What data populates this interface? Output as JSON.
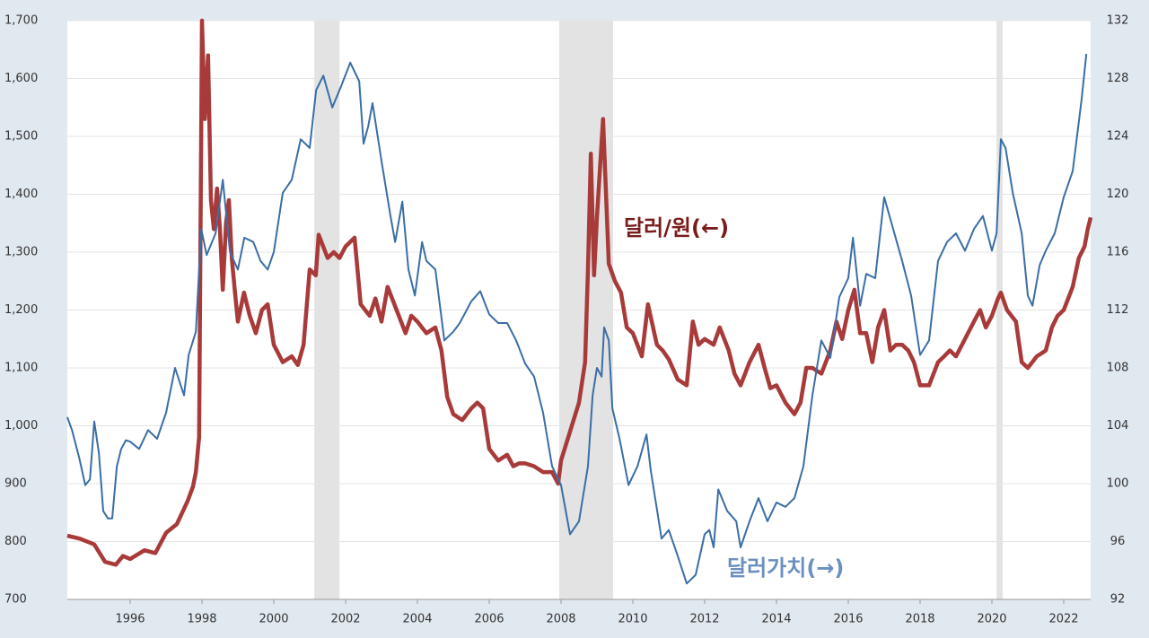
{
  "chart_data": {
    "type": "line",
    "xlim": [
      1994.25,
      2022.75
    ],
    "xticks": [
      1996,
      1998,
      2000,
      2002,
      2004,
      2006,
      2008,
      2010,
      2012,
      2014,
      2016,
      2018,
      2020,
      2022
    ],
    "ylim": [
      700,
      1700
    ],
    "yticks": [
      700,
      800,
      900,
      {
        "value": 1000,
        "label": "1,000"
      },
      {
        "value": 1100,
        "label": "1,100"
      },
      {
        "value": 1200,
        "label": "1,200"
      },
      {
        "value": 1300,
        "label": "1,300"
      },
      {
        "value": 1400,
        "label": "1,400"
      },
      {
        "value": 1500,
        "label": "1,500"
      },
      {
        "value": 1600,
        "label": "1,600"
      },
      {
        "value": 1700,
        "label": "1,700"
      }
    ],
    "y2lim": [
      92,
      132
    ],
    "y2ticks": [
      92,
      96,
      100,
      104,
      108,
      112,
      116,
      120,
      124,
      128,
      132
    ],
    "grid": true,
    "recessions": [
      {
        "start": 2001.13,
        "end": 2001.83
      },
      {
        "start": 2007.95,
        "end": 2009.45
      },
      {
        "start": 2020.13,
        "end": 2020.3
      }
    ],
    "series": [
      {
        "name": "달러/원(←)",
        "color": "#a83a3a",
        "label_color": "#7a1c1c",
        "x": [
          1994.25,
          1994.6,
          1995.0,
          1995.3,
          1995.6,
          1995.8,
          1996.0,
          1996.4,
          1996.7,
          1997.0,
          1997.3,
          1997.6,
          1997.75,
          1997.83,
          1997.92,
          1998.0,
          1998.08,
          1998.17,
          1998.25,
          1998.33,
          1998.42,
          1998.5,
          1998.58,
          1998.67,
          1998.75,
          1998.83,
          1998.92,
          1999.0,
          1999.17,
          1999.33,
          1999.5,
          1999.67,
          1999.83,
          2000.0,
          2000.25,
          2000.5,
          2000.67,
          2000.83,
          2001.0,
          2001.17,
          2001.25,
          2001.5,
          2001.67,
          2001.83,
          2002.0,
          2002.25,
          2002.42,
          2002.67,
          2002.83,
          2003.0,
          2003.17,
          2003.42,
          2003.67,
          2003.83,
          2004.0,
          2004.25,
          2004.5,
          2004.67,
          2004.83,
          2005.0,
          2005.25,
          2005.5,
          2005.67,
          2005.83,
          2006.0,
          2006.25,
          2006.5,
          2006.67,
          2006.83,
          2007.0,
          2007.25,
          2007.5,
          2007.75,
          2007.92,
          2008.0,
          2008.25,
          2008.5,
          2008.67,
          2008.75,
          2008.83,
          2008.92,
          2009.0,
          2009.17,
          2009.33,
          2009.5,
          2009.67,
          2009.83,
          2010.0,
          2010.25,
          2010.42,
          2010.67,
          2010.83,
          2011.0,
          2011.25,
          2011.5,
          2011.67,
          2011.83,
          2012.0,
          2012.25,
          2012.42,
          2012.67,
          2012.83,
          2013.0,
          2013.25,
          2013.5,
          2013.67,
          2013.83,
          2014.0,
          2014.25,
          2014.5,
          2014.67,
          2014.83,
          2015.0,
          2015.25,
          2015.5,
          2015.67,
          2015.83,
          2016.0,
          2016.17,
          2016.33,
          2016.5,
          2016.67,
          2016.83,
          2017.0,
          2017.17,
          2017.33,
          2017.5,
          2017.67,
          2017.83,
          2018.0,
          2018.25,
          2018.5,
          2018.67,
          2018.83,
          2019.0,
          2019.25,
          2019.5,
          2019.67,
          2019.83,
          2020.0,
          2020.17,
          2020.25,
          2020.42,
          2020.67,
          2020.83,
          2021.0,
          2021.25,
          2021.5,
          2021.67,
          2021.83,
          2022.0,
          2022.25,
          2022.42,
          2022.58,
          2022.67,
          2022.75
        ],
        "values": [
          810,
          805,
          795,
          765,
          760,
          775,
          770,
          785,
          780,
          815,
          830,
          870,
          895,
          920,
          980,
          1700,
          1530,
          1640,
          1390,
          1340,
          1410,
          1340,
          1235,
          1350,
          1390,
          1290,
          1230,
          1180,
          1230,
          1190,
          1160,
          1200,
          1210,
          1140,
          1110,
          1120,
          1105,
          1140,
          1270,
          1260,
          1330,
          1290,
          1300,
          1290,
          1310,
          1325,
          1210,
          1190,
          1220,
          1180,
          1240,
          1200,
          1160,
          1190,
          1180,
          1160,
          1170,
          1130,
          1050,
          1020,
          1010,
          1030,
          1040,
          1030,
          960,
          940,
          950,
          930,
          935,
          935,
          930,
          920,
          920,
          900,
          940,
          990,
          1040,
          1110,
          1270,
          1470,
          1260,
          1360,
          1530,
          1280,
          1250,
          1230,
          1170,
          1160,
          1120,
          1210,
          1140,
          1130,
          1115,
          1080,
          1070,
          1180,
          1140,
          1150,
          1140,
          1170,
          1130,
          1090,
          1070,
          1110,
          1140,
          1100,
          1065,
          1070,
          1040,
          1020,
          1040,
          1100,
          1100,
          1090,
          1130,
          1180,
          1150,
          1200,
          1235,
          1160,
          1160,
          1110,
          1170,
          1200,
          1130,
          1140,
          1140,
          1130,
          1110,
          1070,
          1070,
          1110,
          1120,
          1130,
          1120,
          1150,
          1180,
          1200,
          1170,
          1190,
          1220,
          1230,
          1200,
          1180,
          1110,
          1100,
          1120,
          1130,
          1170,
          1190,
          1200,
          1240,
          1290,
          1310,
          1340,
          1360
        ]
      },
      {
        "name": "달러가치(→)",
        "color": "#3a6ea5",
        "label_color": "#6b8fc0",
        "axis": "y2",
        "x": [
          1994.25,
          1994.38,
          1994.58,
          1994.75,
          1994.88,
          1995.0,
          1995.13,
          1995.25,
          1995.38,
          1995.5,
          1995.63,
          1995.75,
          1995.88,
          1996.0,
          1996.25,
          1996.5,
          1996.75,
          1997.0,
          1997.25,
          1997.5,
          1997.63,
          1997.83,
          1997.98,
          1998.13,
          1998.38,
          1998.58,
          1998.78,
          1999.0,
          1999.18,
          1999.43,
          1999.63,
          1999.83,
          2000.0,
          2000.25,
          2000.5,
          2000.75,
          2001.0,
          2001.18,
          2001.38,
          2001.63,
          2001.88,
          2002.13,
          2002.38,
          2002.5,
          2002.63,
          2002.75,
          2003.0,
          2003.25,
          2003.38,
          2003.58,
          2003.75,
          2003.93,
          2004.13,
          2004.25,
          2004.5,
          2004.75,
          2005.0,
          2005.18,
          2005.5,
          2005.75,
          2006.0,
          2006.25,
          2006.5,
          2006.75,
          2007.0,
          2007.25,
          2007.5,
          2007.75,
          2008.0,
          2008.25,
          2008.5,
          2008.75,
          2008.88,
          2009.0,
          2009.13,
          2009.2,
          2009.33,
          2009.43,
          2009.63,
          2009.88,
          2010.13,
          2010.38,
          2010.5,
          2010.8,
          2011.0,
          2011.25,
          2011.5,
          2011.75,
          2012.0,
          2012.13,
          2012.25,
          2012.38,
          2012.63,
          2012.88,
          2013.0,
          2013.25,
          2013.5,
          2013.75,
          2014.0,
          2014.25,
          2014.5,
          2014.75,
          2015.0,
          2015.25,
          2015.5,
          2015.75,
          2016.0,
          2016.13,
          2016.33,
          2016.5,
          2016.75,
          2017.0,
          2017.25,
          2017.5,
          2017.75,
          2018.0,
          2018.25,
          2018.5,
          2018.75,
          2019.0,
          2019.25,
          2019.5,
          2019.75,
          2020.0,
          2020.13,
          2020.25,
          2020.38,
          2020.58,
          2020.83,
          2021.0,
          2021.13,
          2021.33,
          2021.5,
          2021.75,
          2022.0,
          2022.25,
          2022.5,
          2022.63
        ],
        "values": [
          104.6,
          103.7,
          101.8,
          99.9,
          100.3,
          104.3,
          102.1,
          98.1,
          97.6,
          97.6,
          101.2,
          102.4,
          103,
          102.9,
          102.4,
          103.7,
          103.1,
          104.9,
          108,
          106.1,
          108.9,
          110.5,
          117.6,
          115.8,
          117.3,
          121,
          116,
          114.8,
          117,
          116.7,
          115.4,
          114.8,
          116,
          120.1,
          121,
          123.8,
          123.2,
          127.2,
          128.2,
          126,
          127.5,
          129.1,
          127.8,
          123.5,
          124.7,
          126.3,
          122.3,
          118.5,
          116.7,
          119.5,
          114.8,
          113,
          116.7,
          115.4,
          114.8,
          109.9,
          110.5,
          111.1,
          112.6,
          113.3,
          111.7,
          111.1,
          111.1,
          109.9,
          108.3,
          107.4,
          104.9,
          101.2,
          99.9,
          96.5,
          97.4,
          101.2,
          106.1,
          108,
          107.4,
          110.8,
          109.9,
          105.2,
          103.1,
          99.9,
          101.2,
          103.4,
          100.9,
          96.2,
          96.8,
          95,
          93.1,
          93.7,
          96.5,
          96.8,
          95.6,
          99.6,
          98.1,
          97.4,
          95.6,
          97.4,
          99,
          97.4,
          98.7,
          98.4,
          99,
          101.2,
          106.1,
          109.9,
          108.7,
          112.9,
          114.2,
          117,
          112.3,
          114.5,
          114.2,
          119.8,
          117.6,
          115.4,
          113,
          108.9,
          109.9,
          115.4,
          116.7,
          117.3,
          116.1,
          117.6,
          118.5,
          116.1,
          117.3,
          123.8,
          123.2,
          120.1,
          117.3,
          113,
          112.3,
          115.1,
          116.1,
          117.3,
          119.8,
          121.6,
          126.6,
          129.7
        ]
      }
    ]
  }
}
